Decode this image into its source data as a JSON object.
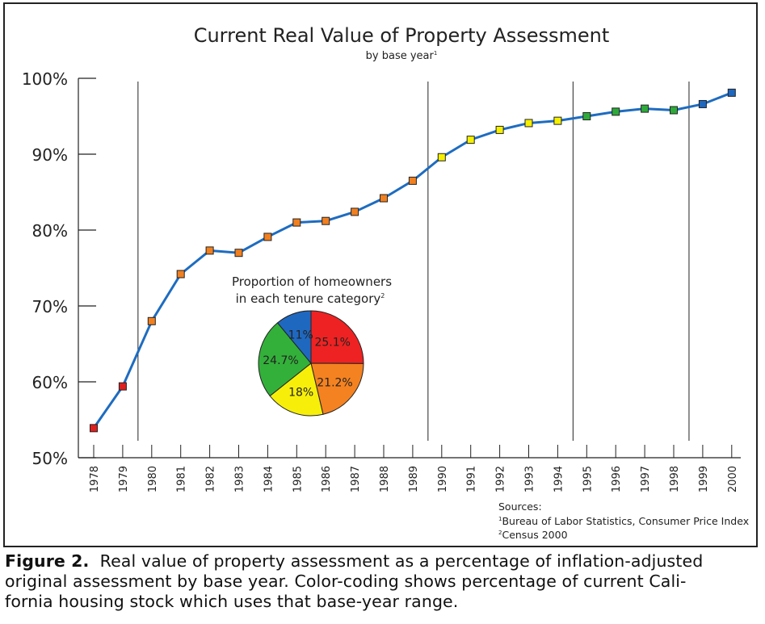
{
  "chart_data": {
    "type": "line",
    "title": "Current Real Value of Property Assessment",
    "subtitle": "by base year",
    "subtitle_note": "1",
    "xlabel": "",
    "ylabel": "",
    "ylim": [
      50,
      100
    ],
    "y_ticks": [
      "50%",
      "60%",
      "70%",
      "80%",
      "90%",
      "100%"
    ],
    "y_tick_values": [
      50,
      60,
      70,
      80,
      90,
      100
    ],
    "categories": [
      "1978",
      "1979",
      "1980",
      "1981",
      "1982",
      "1983",
      "1984",
      "1985",
      "1986",
      "1987",
      "1988",
      "1989",
      "1990",
      "1991",
      "1992",
      "1993",
      "1994",
      "1995",
      "1996",
      "1997",
      "1998",
      "1999",
      "2000"
    ],
    "values": [
      53.9,
      59.4,
      68.0,
      74.2,
      77.3,
      77.0,
      79.1,
      81.0,
      81.2,
      82.4,
      84.2,
      86.5,
      89.6,
      91.9,
      93.2,
      94.1,
      94.4,
      95.0,
      95.6,
      96.0,
      95.8,
      96.6,
      98.1
    ],
    "marker_colors": [
      "#e02020",
      "#e02020",
      "#f08020",
      "#f08020",
      "#f08020",
      "#f08020",
      "#f08020",
      "#f08020",
      "#f08020",
      "#f08020",
      "#f08020",
      "#f08020",
      "#f5f000",
      "#f5f000",
      "#f5f000",
      "#f5f000",
      "#f5f000",
      "#2eaa3a",
      "#2eaa3a",
      "#2eaa3a",
      "#2eaa3a",
      "#1e68c0",
      "#1e68c0"
    ],
    "line_color": "#1e6cc0",
    "divider_after_years": [
      "1979",
      "1989",
      "1994",
      "1998"
    ],
    "pie": {
      "title_line1": "Proportion of homeowners",
      "title_line2": "in each tenure category",
      "title_note": "2",
      "slices": [
        {
          "label": "25.1%",
          "value": 25.1,
          "color": "#ee2222"
        },
        {
          "label": "21.2%",
          "value": 21.2,
          "color": "#f58220"
        },
        {
          "label": "18%",
          "value": 18.0,
          "color": "#f7ef0a"
        },
        {
          "label": "24.7%",
          "value": 24.7,
          "color": "#33b03a"
        },
        {
          "label": "11%",
          "value": 11.0,
          "color": "#1f68c0"
        }
      ]
    },
    "sources": {
      "heading": "Sources:",
      "items": [
        {
          "note": "1",
          "text": "Bureau of Labor Statistics, Consumer Price Index"
        },
        {
          "note": "2",
          "text": "Census 2000"
        }
      ]
    }
  },
  "caption": {
    "label": "Figure 2.",
    "line1": "Real value of property assessment as a percentage of inflation-adjusted",
    "line2": "original assessment by base year.  Color-coding shows percentage of current Cali-",
    "line3": "fornia housing stock which uses that base-year range."
  }
}
